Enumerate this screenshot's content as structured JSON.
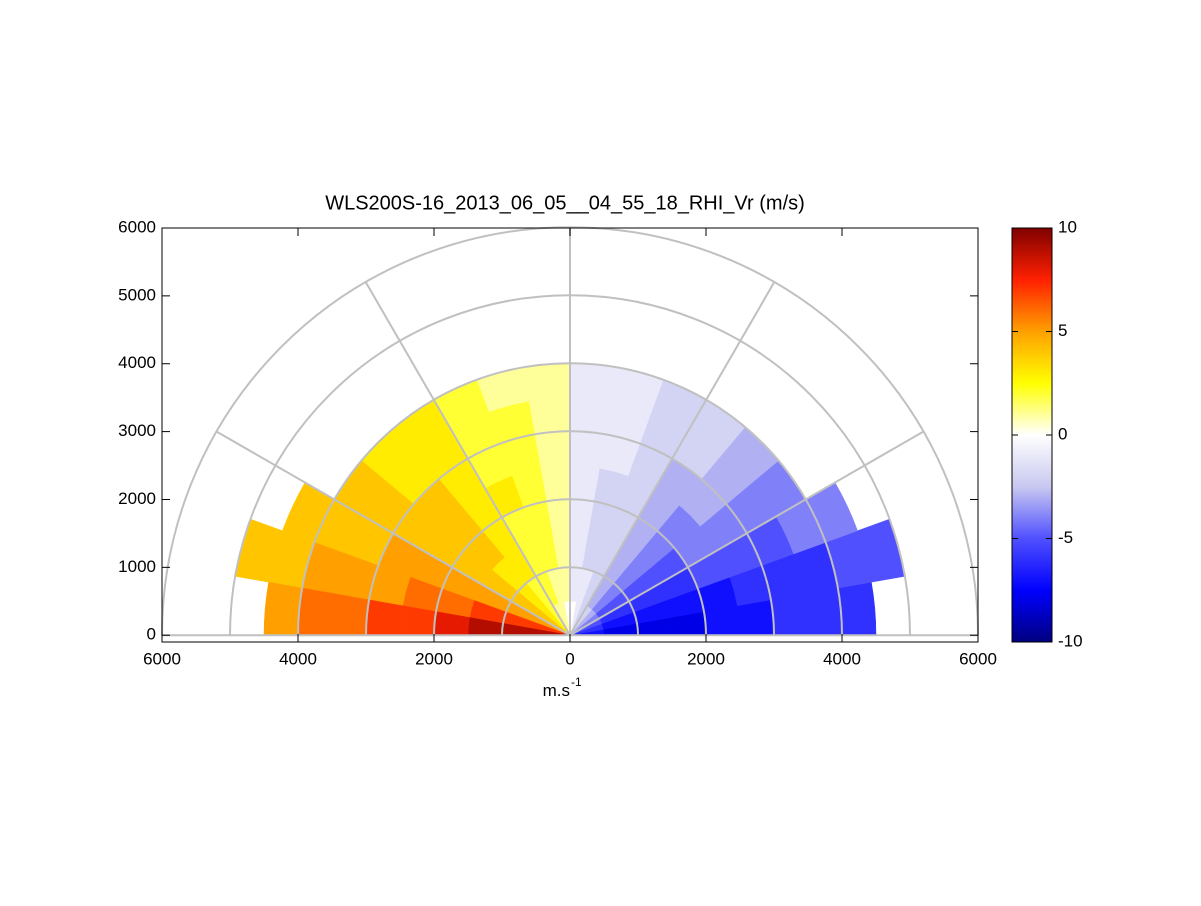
{
  "chart_data": {
    "type": "polar-heatmap",
    "title": "WLS200S-16_2013_06_05__04_55_18_RHI_Vr (m/s)",
    "x_label": "m.s",
    "x_label_sup": "-1",
    "xlim": [
      -6000,
      6000
    ],
    "ylim": [
      -100,
      6000
    ],
    "xticks": [
      {
        "value": -6000,
        "label": "6000"
      },
      {
        "value": -4000,
        "label": "4000"
      },
      {
        "value": -2000,
        "label": "2000"
      },
      0,
      2000,
      4000,
      6000
    ],
    "yticks": [
      0,
      1000,
      2000,
      3000,
      4000,
      5000,
      6000
    ],
    "range_rings": [
      1000,
      2000,
      3000,
      4000,
      5000,
      6000
    ],
    "spokes": [
      0,
      30,
      60,
      90,
      120,
      150,
      180
    ],
    "grid_color": "#c0c0c0",
    "angle_width": 10,
    "range_width": 500,
    "angles": [
      5,
      15,
      25,
      35,
      45,
      55,
      65,
      75,
      85,
      95,
      105,
      115,
      125,
      135,
      145,
      155,
      165,
      175
    ],
    "ranges": [
      250,
      750,
      1250,
      1750,
      2250,
      2750,
      3250,
      3750,
      4250,
      4750
    ],
    "values": [
      [
        -7,
        -8,
        -8,
        -8,
        -7,
        -7,
        -6,
        -6,
        -6,
        null
      ],
      [
        -6,
        -7,
        -7,
        -7,
        -7,
        -6,
        -6,
        -6,
        -5,
        -5
      ],
      [
        -5,
        -6,
        -6,
        -6,
        -5,
        -5,
        -5,
        -4,
        -4,
        null
      ],
      [
        -4,
        -5,
        -5,
        -5,
        -4,
        -4,
        -4,
        -4,
        null,
        null
      ],
      [
        -3,
        -4,
        -4,
        -4,
        -4,
        -3,
        -3,
        -3,
        null,
        null
      ],
      [
        -2,
        -3,
        -3,
        -3,
        -3,
        -3,
        -2,
        -2,
        null,
        null
      ],
      [
        -2,
        -2,
        -2,
        -2,
        -2,
        -2,
        -2,
        -2,
        null,
        null
      ],
      [
        -1,
        -1,
        -2,
        -2,
        -2,
        -1,
        -1,
        -1,
        null,
        null
      ],
      [
        0,
        -1,
        -1,
        -1,
        -1,
        -1,
        -1,
        -1,
        null,
        null
      ],
      [
        0,
        1,
        1,
        1,
        1,
        1,
        1,
        1,
        null,
        null
      ],
      [
        1,
        1,
        2,
        2,
        2,
        2,
        2,
        1,
        null,
        null
      ],
      [
        1,
        2,
        2,
        2,
        3,
        2,
        2,
        2,
        null,
        null
      ],
      [
        2,
        2,
        3,
        3,
        3,
        3,
        3,
        3,
        null,
        null
      ],
      [
        3,
        3,
        3,
        4,
        4,
        4,
        3,
        3,
        null,
        null
      ],
      [
        4,
        4,
        4,
        4,
        4,
        4,
        4,
        4,
        null,
        null
      ],
      [
        5,
        5,
        5,
        5,
        5,
        5,
        4,
        4,
        4,
        null
      ],
      [
        7,
        7,
        7,
        6,
        6,
        5,
        5,
        5,
        4,
        4
      ],
      [
        9,
        9,
        9,
        8,
        7,
        7,
        6,
        6,
        5,
        null
      ]
    ],
    "clim": [
      -10,
      10
    ],
    "cticks": [
      -10,
      -5,
      0,
      5,
      10
    ],
    "colormap": [
      "#000080",
      "#0000ff",
      "#5050ff",
      "#c8c8f0",
      "#ffffff",
      "#ffff00",
      "#ffa000",
      "#ff2000",
      "#800000"
    ]
  }
}
